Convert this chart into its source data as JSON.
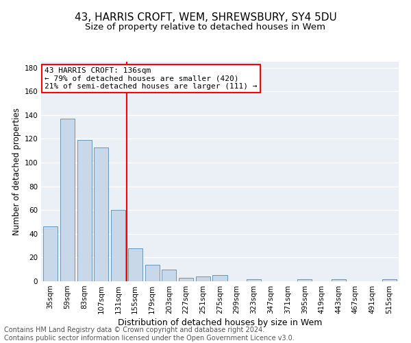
{
  "title": "43, HARRIS CROFT, WEM, SHREWSBURY, SY4 5DU",
  "subtitle": "Size of property relative to detached houses in Wem",
  "xlabel": "Distribution of detached houses by size in Wem",
  "ylabel": "Number of detached properties",
  "categories": [
    "35sqm",
    "59sqm",
    "83sqm",
    "107sqm",
    "131sqm",
    "155sqm",
    "179sqm",
    "203sqm",
    "227sqm",
    "251sqm",
    "275sqm",
    "299sqm",
    "323sqm",
    "347sqm",
    "371sqm",
    "395sqm",
    "419sqm",
    "443sqm",
    "467sqm",
    "491sqm",
    "515sqm"
  ],
  "values": [
    46,
    137,
    119,
    113,
    60,
    28,
    14,
    10,
    3,
    4,
    5,
    0,
    2,
    0,
    0,
    2,
    0,
    2,
    0,
    0,
    2
  ],
  "bar_color": "#c8d8e8",
  "bar_edge_color": "#5a8ab0",
  "annotation_line1": "43 HARRIS CROFT: 136sqm",
  "annotation_line2": "← 79% of detached houses are smaller (420)",
  "annotation_line3": "21% of semi-detached houses are larger (111) →",
  "annotation_box_color": "white",
  "annotation_box_edge_color": "red",
  "vline_color": "red",
  "vline_index": 4,
  "ylim": [
    0,
    185
  ],
  "yticks": [
    0,
    20,
    40,
    60,
    80,
    100,
    120,
    140,
    160,
    180
  ],
  "footer_line1": "Contains HM Land Registry data © Crown copyright and database right 2024.",
  "footer_line2": "Contains public sector information licensed under the Open Government Licence v3.0.",
  "background_color": "#eaf0f6",
  "grid_color": "white",
  "title_fontsize": 11,
  "subtitle_fontsize": 9.5,
  "ylabel_fontsize": 8.5,
  "xlabel_fontsize": 9,
  "tick_fontsize": 7.5,
  "annotation_fontsize": 8,
  "footer_fontsize": 7
}
